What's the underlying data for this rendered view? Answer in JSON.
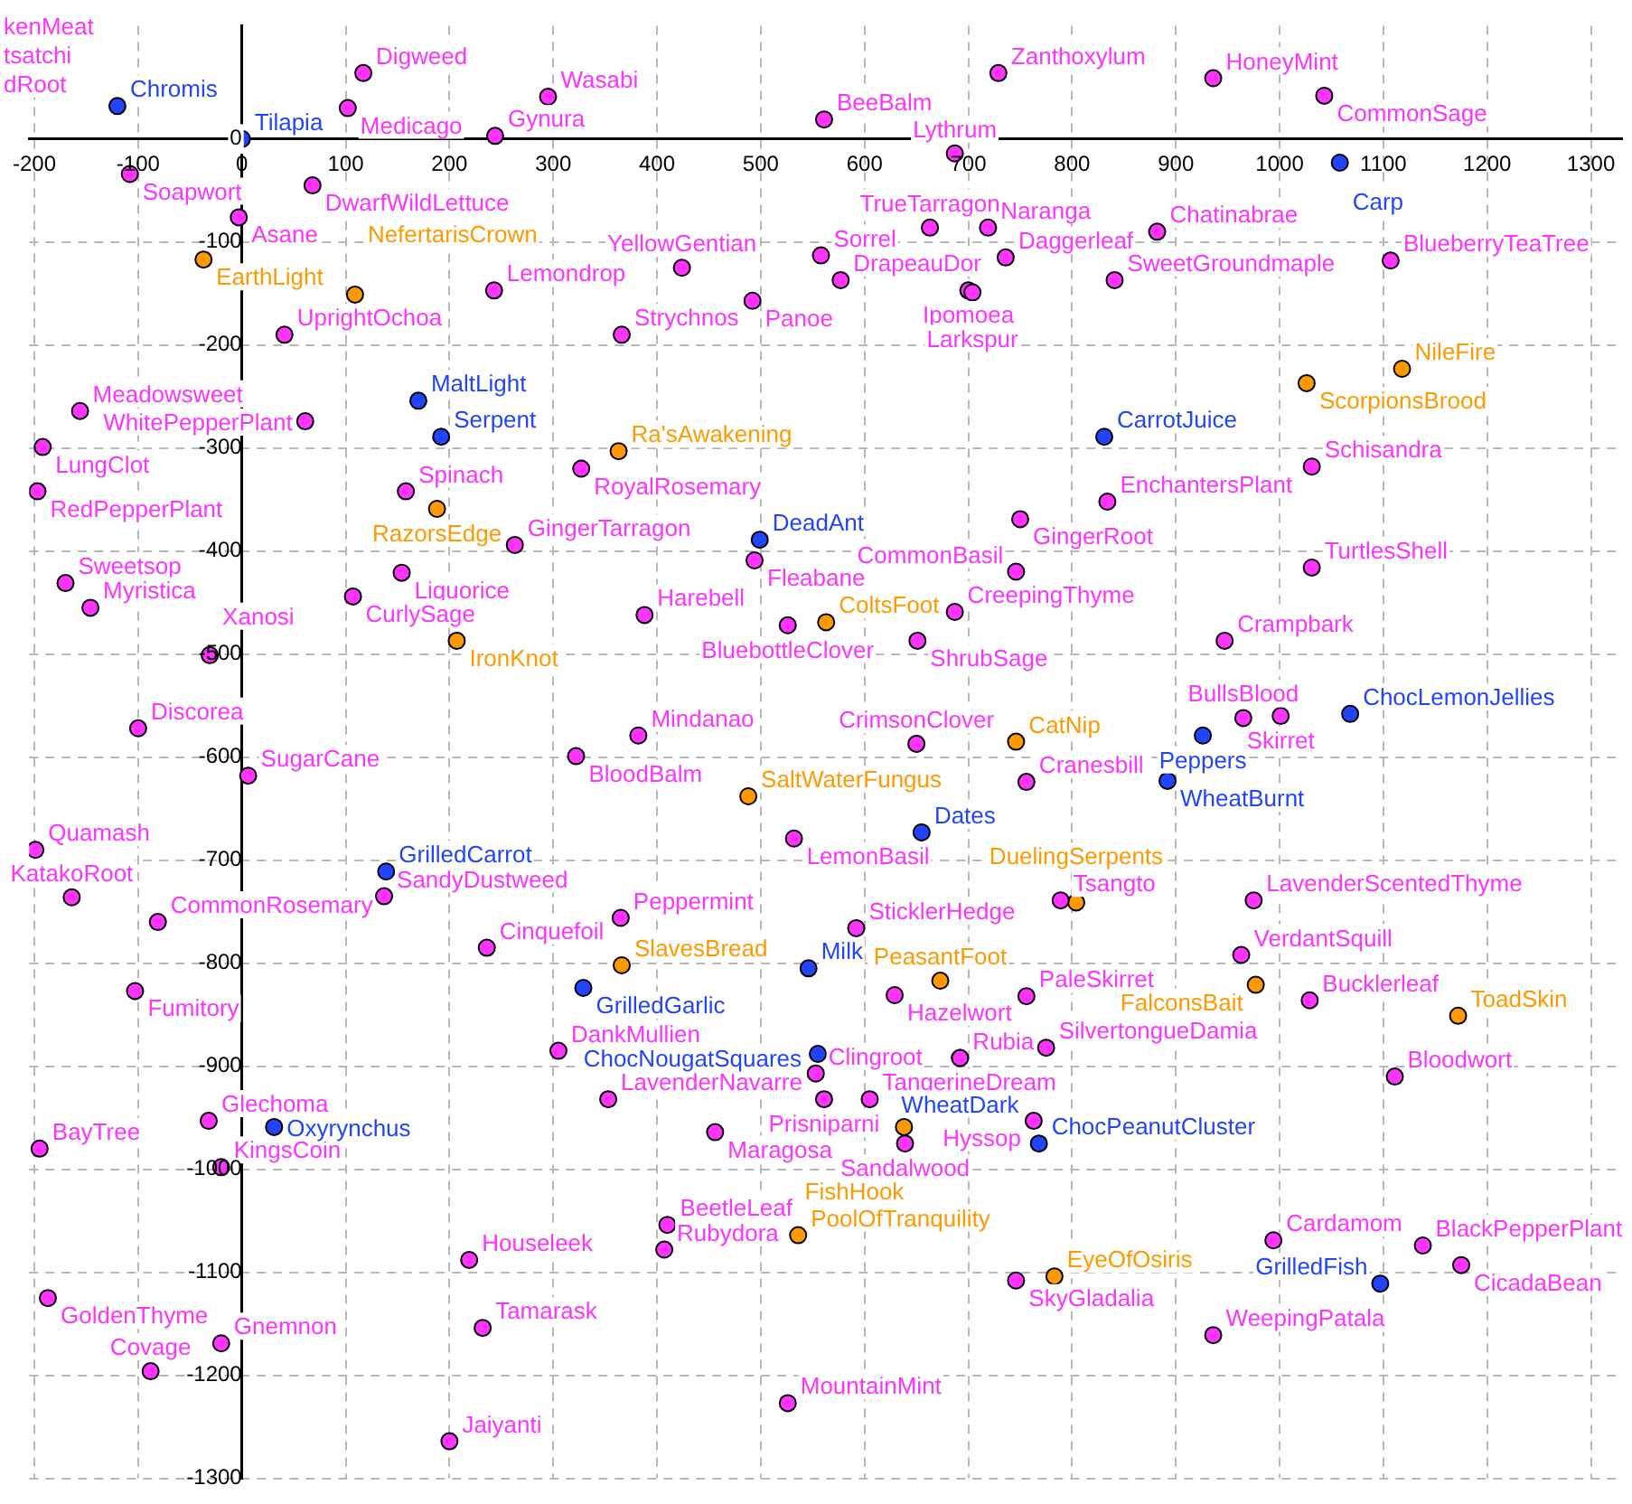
{
  "chart_data": {
    "type": "scatter",
    "xlim": [
      -205,
      1330
    ],
    "ylim": [
      -1300,
      110
    ],
    "xticks": [
      -200,
      -100,
      0,
      100,
      200,
      300,
      400,
      500,
      600,
      700,
      800,
      900,
      1000,
      1100,
      1200,
      1300
    ],
    "yticks": [
      -1300,
      -1200,
      -1100,
      -1000,
      -900,
      -800,
      -700,
      -600,
      -500,
      -400,
      -300,
      -200,
      -100,
      0
    ],
    "grid": true,
    "legend": false,
    "marker": "circle",
    "annotations": [
      "kenMeat",
      "tsatchi",
      "dRoot"
    ],
    "series": [
      {
        "color": "#ff33ff",
        "x": [
          117,
          102,
          244,
          295,
          -108,
          68,
          -3,
          243,
          41,
          -156,
          61,
          -192,
          -197,
          158,
          327,
          263,
          154,
          -170,
          -146,
          107,
          -31,
          -100,
          6,
          322,
          729,
          561,
          687,
          663,
          719,
          424,
          558,
          577,
          736,
          700,
          704,
          492,
          366,
          494,
          388,
          526,
          651,
          687,
          750,
          746,
          382,
          650,
          834,
          841,
          936,
          1043,
          882,
          1107,
          1031,
          1031,
          947,
          965,
          1001,
          -199,
          -164,
          -81,
          -103,
          137,
          236,
          305,
          -32,
          -195,
          -20,
          219,
          -187,
          232,
          -20,
          -88,
          200,
          532,
          756,
          365,
          592,
          629,
          756,
          789,
          692,
          775,
          553,
          353,
          561,
          605,
          456,
          639,
          763,
          410,
          407,
          746,
          526,
          975,
          963,
          1029,
          1111,
          994,
          1138,
          1175,
          936
        ],
        "values": [
          64,
          30,
          3,
          41,
          -34,
          -45,
          -76,
          -147,
          -190,
          -264,
          -274,
          -299,
          -342,
          -342,
          -320,
          -394,
          -421,
          -431,
          -455,
          -444,
          -501,
          -572,
          -618,
          -599,
          64,
          19,
          -14,
          -86,
          -86,
          -125,
          -113,
          -137,
          -115,
          -147,
          -149,
          -157,
          -190,
          -409,
          -462,
          -472,
          -487,
          -459,
          -369,
          -420,
          -579,
          -587,
          -352,
          -137,
          59,
          42,
          -90,
          -118,
          -318,
          -416,
          -487,
          -562,
          -560,
          -690,
          -736,
          -760,
          -827,
          -735,
          -785,
          -885,
          -953,
          -980,
          -998,
          -1088,
          -1125,
          -1154,
          -1169,
          -1196,
          -1264,
          -679,
          -624,
          -756,
          -766,
          -831,
          -832,
          -739,
          -892,
          -882,
          -907,
          -932,
          -932,
          -932,
          -964,
          -975,
          -953,
          -1054,
          -1078,
          -1108,
          -1227,
          -739,
          -792,
          -836,
          -910,
          -1069,
          -1074,
          -1093,
          -1161
        ],
        "value_labels": [
          "Digweed",
          "Medicago",
          "Gynura",
          "Wasabi",
          "Soapwort",
          "DwarfWildLettuce",
          "Asane",
          "Lemondrop",
          "UprightOchoa",
          "Meadowsweet",
          "WhitePepperPlant",
          "LungClot",
          "RedPepperPlant",
          "Spinach",
          "RoyalRosemary",
          "GingerTarragon",
          "Liquorice",
          "Sweetsop",
          "Myristica",
          "CurlySage",
          "Xanosi",
          "Discorea",
          "SugarCane",
          "BloodBalm",
          "Zanthoxylum",
          "BeeBalm",
          "Lythrum",
          "TrueTarragon",
          "Naranga",
          "YellowGentian",
          "Sorrel",
          "DrapeauDor",
          "Daggerleaf",
          "Ipomoea",
          "Larkspur",
          "Panoe",
          "Strychnos",
          "Fleabane",
          "Harebell",
          "BluebottleClover",
          "ShrubSage",
          "CreepingThyme",
          "GingerRoot",
          "CommonBasil",
          "Mindanao",
          "CrimsonClover",
          "EnchantersPlant",
          "SweetGroundmaple",
          "HoneyMint",
          "CommonSage",
          "Chatinabrae",
          "BlueberryTeaTree",
          "Schisandra",
          "TurtlesShell",
          "Crampbark",
          "BullsBlood",
          "Skirret",
          "Quamash",
          "KatakoRoot",
          "CommonRosemary",
          "Fumitory",
          "SandyDustweed",
          "Cinquefoil",
          "DankMullien",
          "Glechoma",
          "BayTree",
          "KingsCoin",
          "Houseleek",
          "GoldenThyme",
          "Tamarask",
          "Gnemnon",
          "Covage",
          "Jaiyanti",
          "LemonBasil",
          "Cranesbill",
          "Peppermint",
          "SticklerHedge",
          "Hazelwort",
          "PaleSkirret",
          "Tsangto",
          "Rubia",
          "SilvertongueDamia",
          "Clingroot",
          "LavenderNavarre",
          "Prisniparni",
          "TangerineDream",
          "Maragosa",
          "Sandalwood",
          "Hyssop",
          "BeetleLeaf",
          "Rubydora",
          "SkyGladalia",
          "MountainMint",
          "LavenderScentedThyme",
          "VerdantSquill",
          "Bucklerleaf",
          "Bloodwort",
          "Cardamom",
          "BlackPepperPlant",
          "CicadaBean",
          "WeepingPatala"
        ]
      },
      {
        "color": "#2244ff",
        "x": [
          -120,
          0,
          170,
          192,
          499,
          831,
          1058,
          1068,
          926,
          139,
          329,
          31,
          655,
          546,
          555,
          692,
          768,
          892,
          1097
        ],
        "values": [
          32,
          0,
          -254,
          -289,
          -389,
          -289,
          -23,
          -558,
          -579,
          -711,
          -824,
          -959,
          -673,
          -805,
          -888,
          -892,
          -975,
          -623,
          -1111
        ],
        "value_labels": [
          "Chromis",
          "Tilapia",
          "MaltLight",
          "Serpent",
          "DeadAnt",
          "CarrotJuice",
          "Carp",
          "ChocLemonJellies",
          "Peppers",
          "GrilledCarrot",
          "GrilledGarlic",
          "Oxyrynchus",
          "Dates",
          "Milk",
          "ChocNougatSquares",
          "WheatDark",
          "ChocPeanutCluster",
          "WheatBurnt",
          "GrilledFish"
        ]
      },
      {
        "color": "#ff9900",
        "x": [
          -37,
          109,
          188,
          207,
          363,
          563,
          746,
          1026,
          1118,
          488,
          366,
          673,
          804,
          638,
          536,
          783,
          977,
          1172
        ],
        "values": [
          -117,
          -151,
          -359,
          -487,
          -303,
          -469,
          -585,
          -237,
          -223,
          -638,
          -802,
          -817,
          -741,
          -959,
          -1064,
          -1104,
          -821,
          -851
        ],
        "value_labels": [
          "EarthLight",
          "NefertarisCrown",
          "RazorsEdge",
          "IronKnot",
          "Ra'sAwakening",
          "ColtsFoot",
          "CatNip",
          "ScorpionsBrood",
          "NileFire",
          "SaltWaterFungus",
          "SlavesBread",
          "PeasantFoot",
          "DuelingSerpents",
          "FishHook",
          "PoolOfTranquility",
          "EyeOfOsiris",
          "FalconsBait",
          "ToadSkin"
        ]
      }
    ]
  }
}
